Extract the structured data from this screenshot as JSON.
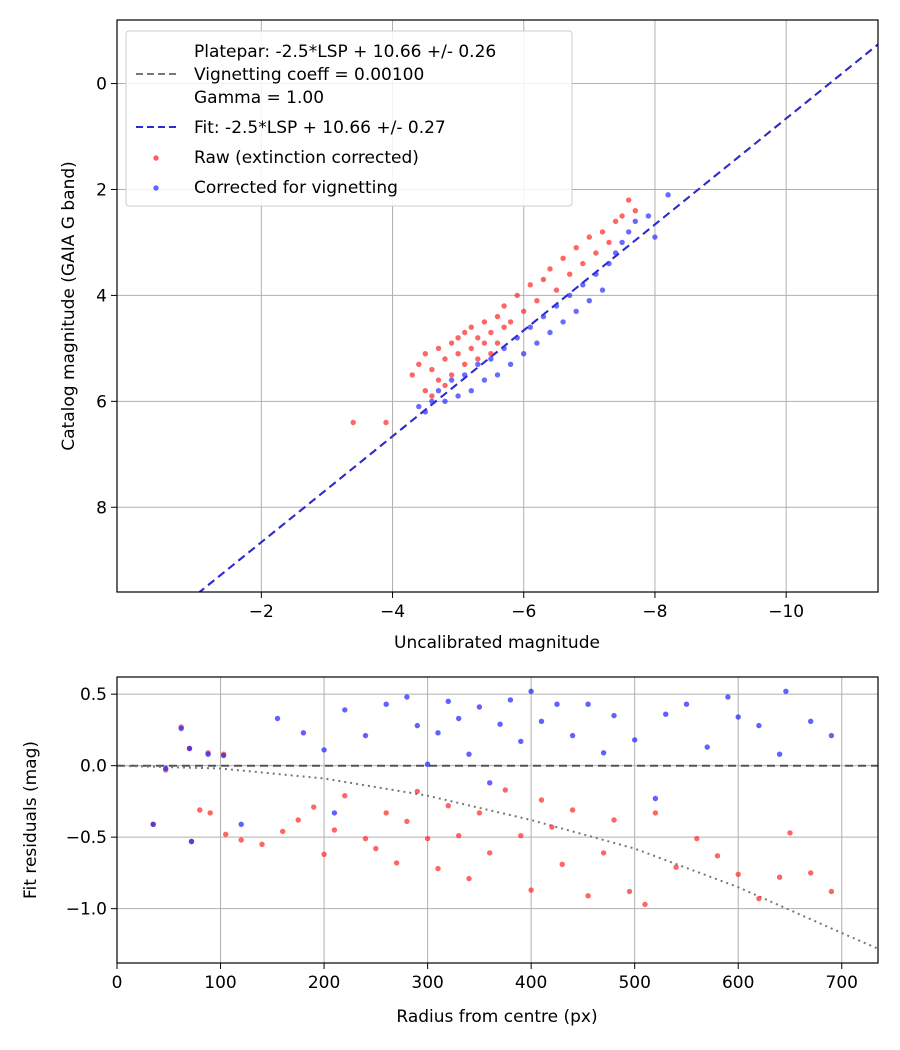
{
  "chart_data": [
    {
      "type": "scatter",
      "title": "",
      "xlabel": "Uncalibrated magnitude",
      "ylabel": "Catalog magnitude (GAIA G band)",
      "xlim": [
        0.2,
        -11.4
      ],
      "ylim": [
        9.6,
        -1.2
      ],
      "x_ticks": [
        -2,
        -4,
        -6,
        -8,
        -10
      ],
      "x_tick_labels": [
        "−2",
        "−4",
        "−6",
        "−8",
        "−10"
      ],
      "y_ticks": [
        0,
        2,
        4,
        6,
        8
      ],
      "y_tick_labels": [
        "0",
        "2",
        "4",
        "6",
        "8"
      ],
      "grid": true,
      "legend_position": "top-left",
      "legend": [
        {
          "label": "Platepar: -2.5*LSP + 10.66 +/- 0.26\nVignetting coeff = 0.00100\nGamma = 1.00",
          "kind": "dashed-line",
          "color": "#777777"
        },
        {
          "label": "Fit: -2.5*LSP + 10.66 +/- 0.27",
          "kind": "dashed-line",
          "color": "#2b2bd6"
        },
        {
          "label": "Raw (extinction corrected)",
          "kind": "marker",
          "color": "#ff2a2a"
        },
        {
          "label": "Corrected for vignetting",
          "kind": "marker",
          "color": "#3030ff"
        }
      ],
      "lines": [
        {
          "name": "Platepar",
          "intercept": 10.66,
          "slope": 1.0,
          "style": "dashed",
          "color": "#777777"
        },
        {
          "name": "Fit",
          "intercept": 10.66,
          "slope": 1.0,
          "style": "dashed",
          "color": "#2b2bd6"
        }
      ],
      "series": [
        {
          "name": "Raw (extinction corrected)",
          "color": "#ff2a2a",
          "points": [
            [
              -3.4,
              6.4
            ],
            [
              -3.9,
              6.4
            ],
            [
              -4.3,
              5.5
            ],
            [
              -4.4,
              5.3
            ],
            [
              -4.5,
              5.8
            ],
            [
              -4.5,
              5.1
            ],
            [
              -4.6,
              5.4
            ],
            [
              -4.6,
              5.9
            ],
            [
              -4.7,
              5.0
            ],
            [
              -4.7,
              5.6
            ],
            [
              -4.8,
              5.2
            ],
            [
              -4.8,
              5.7
            ],
            [
              -4.9,
              4.9
            ],
            [
              -4.9,
              5.5
            ],
            [
              -5.0,
              5.1
            ],
            [
              -5.0,
              4.8
            ],
            [
              -5.1,
              5.3
            ],
            [
              -5.1,
              4.7
            ],
            [
              -5.2,
              5.0
            ],
            [
              -5.2,
              4.6
            ],
            [
              -5.3,
              5.2
            ],
            [
              -5.3,
              4.8
            ],
            [
              -5.4,
              4.9
            ],
            [
              -5.4,
              4.5
            ],
            [
              -5.5,
              4.7
            ],
            [
              -5.5,
              5.1
            ],
            [
              -5.6,
              4.4
            ],
            [
              -5.6,
              4.9
            ],
            [
              -5.7,
              4.6
            ],
            [
              -5.7,
              4.2
            ],
            [
              -5.8,
              4.5
            ],
            [
              -5.9,
              4.0
            ],
            [
              -6.0,
              4.3
            ],
            [
              -6.1,
              3.8
            ],
            [
              -6.2,
              4.1
            ],
            [
              -6.3,
              3.7
            ],
            [
              -6.4,
              3.5
            ],
            [
              -6.5,
              3.9
            ],
            [
              -6.6,
              3.3
            ],
            [
              -6.7,
              3.6
            ],
            [
              -6.8,
              3.1
            ],
            [
              -6.9,
              3.4
            ],
            [
              -7.0,
              2.9
            ],
            [
              -7.1,
              3.2
            ],
            [
              -7.2,
              2.8
            ],
            [
              -7.3,
              3.0
            ],
            [
              -7.4,
              2.6
            ],
            [
              -7.5,
              2.5
            ],
            [
              -7.6,
              2.2
            ],
            [
              -7.7,
              2.4
            ]
          ]
        },
        {
          "name": "Corrected for vignetting",
          "color": "#3030ff",
          "points": [
            [
              -4.4,
              6.1
            ],
            [
              -4.5,
              6.2
            ],
            [
              -4.6,
              6.0
            ],
            [
              -4.7,
              5.8
            ],
            [
              -4.8,
              6.0
            ],
            [
              -4.9,
              5.6
            ],
            [
              -5.0,
              5.9
            ],
            [
              -5.1,
              5.5
            ],
            [
              -5.2,
              5.8
            ],
            [
              -5.3,
              5.3
            ],
            [
              -5.4,
              5.6
            ],
            [
              -5.5,
              5.2
            ],
            [
              -5.6,
              5.5
            ],
            [
              -5.7,
              5.0
            ],
            [
              -5.8,
              5.3
            ],
            [
              -5.9,
              4.8
            ],
            [
              -6.0,
              5.1
            ],
            [
              -6.1,
              4.6
            ],
            [
              -6.2,
              4.9
            ],
            [
              -6.3,
              4.4
            ],
            [
              -6.4,
              4.7
            ],
            [
              -6.5,
              4.2
            ],
            [
              -6.6,
              4.5
            ],
            [
              -6.7,
              4.0
            ],
            [
              -6.8,
              4.3
            ],
            [
              -6.9,
              3.8
            ],
            [
              -7.0,
              4.1
            ],
            [
              -7.1,
              3.6
            ],
            [
              -7.2,
              3.9
            ],
            [
              -7.3,
              3.4
            ],
            [
              -7.4,
              3.2
            ],
            [
              -7.5,
              3.0
            ],
            [
              -7.6,
              2.8
            ],
            [
              -7.7,
              2.6
            ],
            [
              -7.9,
              2.5
            ],
            [
              -8.0,
              2.9
            ],
            [
              -8.2,
              2.1
            ]
          ]
        }
      ]
    },
    {
      "type": "scatter",
      "title": "",
      "xlabel": "Radius from centre (px)",
      "ylabel": "Fit residuals (mag)",
      "xlim": [
        0,
        735
      ],
      "ylim": [
        -1.38,
        0.62
      ],
      "x_ticks": [
        0,
        100,
        200,
        300,
        400,
        500,
        600,
        700
      ],
      "x_tick_labels": [
        "0",
        "100",
        "200",
        "300",
        "400",
        "500",
        "600",
        "700"
      ],
      "y_ticks": [
        0.5,
        0.0,
        -0.5,
        -1.0
      ],
      "y_tick_labels": [
        "0.5",
        "0.0",
        "−0.5",
        "−1.0"
      ],
      "grid": true,
      "lines": [
        {
          "name": "zero",
          "style": "dashed",
          "color": "#555555",
          "points": [
            [
              0,
              0
            ],
            [
              735,
              0
            ]
          ]
        },
        {
          "name": "vignetting",
          "style": "dotted",
          "color": "#777777",
          "points": [
            [
              0,
              0
            ],
            [
              100,
              -0.02
            ],
            [
              200,
              -0.09
            ],
            [
              300,
              -0.21
            ],
            [
              400,
              -0.38
            ],
            [
              500,
              -0.58
            ],
            [
              600,
              -0.85
            ],
            [
              700,
              -1.17
            ],
            [
              735,
              -1.28
            ]
          ]
        }
      ],
      "series": [
        {
          "name": "Raw (extinction corrected)",
          "color": "#ff2a2a",
          "points": [
            [
              35,
              -0.41
            ],
            [
              47,
              -0.03
            ],
            [
              62,
              0.27
            ],
            [
              70,
              0.12
            ],
            [
              72,
              -0.53
            ],
            [
              80,
              -0.31
            ],
            [
              88,
              0.09
            ],
            [
              90,
              -0.33
            ],
            [
              103,
              0.08
            ],
            [
              105,
              -0.48
            ],
            [
              120,
              -0.52
            ],
            [
              140,
              -0.55
            ],
            [
              160,
              -0.46
            ],
            [
              175,
              -0.38
            ],
            [
              190,
              -0.29
            ],
            [
              200,
              -0.62
            ],
            [
              210,
              -0.45
            ],
            [
              220,
              -0.21
            ],
            [
              240,
              -0.51
            ],
            [
              250,
              -0.58
            ],
            [
              260,
              -0.33
            ],
            [
              270,
              -0.68
            ],
            [
              280,
              -0.39
            ],
            [
              290,
              -0.18
            ],
            [
              300,
              -0.51
            ],
            [
              310,
              -0.72
            ],
            [
              320,
              -0.28
            ],
            [
              330,
              -0.49
            ],
            [
              340,
              -0.79
            ],
            [
              350,
              -0.33
            ],
            [
              360,
              -0.61
            ],
            [
              375,
              -0.17
            ],
            [
              390,
              -0.49
            ],
            [
              400,
              -0.87
            ],
            [
              410,
              -0.24
            ],
            [
              420,
              -0.43
            ],
            [
              430,
              -0.69
            ],
            [
              440,
              -0.31
            ],
            [
              455,
              -0.91
            ],
            [
              470,
              -0.61
            ],
            [
              480,
              -0.38
            ],
            [
              495,
              -0.88
            ],
            [
              510,
              -0.97
            ],
            [
              520,
              -0.33
            ],
            [
              540,
              -0.71
            ],
            [
              560,
              -0.51
            ],
            [
              580,
              -0.63
            ],
            [
              600,
              -0.76
            ],
            [
              620,
              -0.93
            ],
            [
              640,
              -0.78
            ],
            [
              650,
              -0.47
            ],
            [
              670,
              -0.75
            ],
            [
              690,
              -0.88
            ]
          ]
        },
        {
          "name": "Corrected for vignetting",
          "color": "#2424ff",
          "points": [
            [
              35,
              -0.41
            ],
            [
              47,
              -0.02
            ],
            [
              62,
              0.26
            ],
            [
              70,
              0.12
            ],
            [
              72,
              -0.53
            ],
            [
              88,
              0.08
            ],
            [
              103,
              0.07
            ],
            [
              120,
              -0.41
            ],
            [
              155,
              0.33
            ],
            [
              180,
              0.23
            ],
            [
              200,
              0.11
            ],
            [
              210,
              -0.33
            ],
            [
              220,
              0.39
            ],
            [
              240,
              0.21
            ],
            [
              260,
              0.43
            ],
            [
              280,
              0.48
            ],
            [
              290,
              0.28
            ],
            [
              300,
              0.01
            ],
            [
              310,
              0.23
            ],
            [
              320,
              0.45
            ],
            [
              330,
              0.33
            ],
            [
              340,
              0.08
            ],
            [
              350,
              0.41
            ],
            [
              360,
              -0.12
            ],
            [
              370,
              0.29
            ],
            [
              380,
              0.46
            ],
            [
              390,
              0.17
            ],
            [
              400,
              0.52
            ],
            [
              410,
              0.31
            ],
            [
              425,
              0.43
            ],
            [
              440,
              0.21
            ],
            [
              455,
              0.43
            ],
            [
              470,
              0.09
            ],
            [
              480,
              0.35
            ],
            [
              500,
              0.18
            ],
            [
              520,
              -0.23
            ],
            [
              530,
              0.36
            ],
            [
              550,
              0.43
            ],
            [
              570,
              0.13
            ],
            [
              590,
              0.48
            ],
            [
              600,
              0.34
            ],
            [
              620,
              0.28
            ],
            [
              640,
              0.08
            ],
            [
              646,
              0.52
            ],
            [
              670,
              0.31
            ],
            [
              690,
              0.21
            ]
          ]
        }
      ]
    }
  ]
}
